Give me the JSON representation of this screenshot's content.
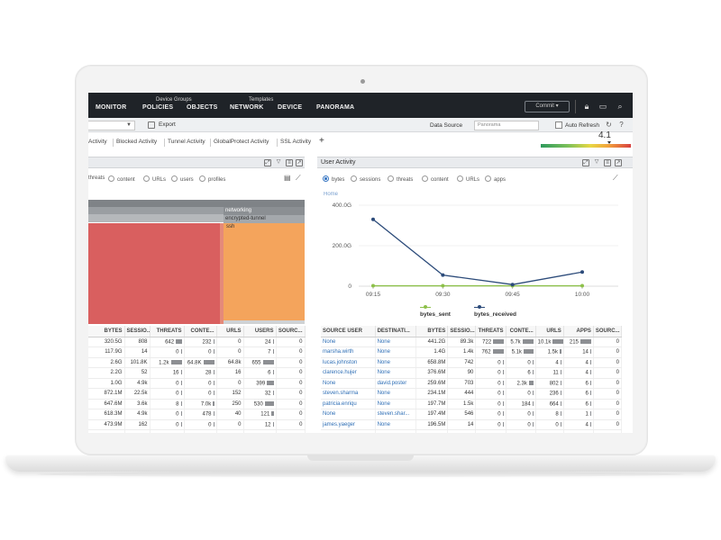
{
  "nav": {
    "tabs": [
      "MONITOR",
      "POLICIES",
      "OBJECTS",
      "NETWORK",
      "DEVICE",
      "PANORAMA"
    ],
    "device_groups_label": "Device Groups",
    "templates_label": "Templates",
    "commit_label": "Commit"
  },
  "toolbar": {
    "export_label": "Export",
    "data_source_label": "Data Source",
    "data_source_value": "Panorama",
    "auto_refresh_label": "Auto Refresh"
  },
  "tabs": [
    "Activity",
    "Blocked Activity",
    "Tunnel Activity",
    "GlobalProtect Activity",
    "SSL Activity"
  ],
  "score": {
    "value": "4.1",
    "level": 0.76
  },
  "left_panel": {
    "filters": [
      "threats",
      "content",
      "URLs",
      "users",
      "profiles"
    ],
    "treemap_labels": [
      "networking",
      "encrypted-tunnel",
      "ssh"
    ],
    "table": {
      "headers": [
        "BYTES",
        "SESSIO...",
        "THREATS",
        "CONTE...",
        "URLS",
        "USERS",
        "SOURC..."
      ],
      "rows": [
        [
          "320.5G",
          "808",
          "642",
          "232",
          "0",
          "24",
          "0"
        ],
        [
          "117.9G",
          "14",
          "0",
          "0",
          "0",
          "7",
          "0"
        ],
        [
          "2.6G",
          "101.8K",
          "1.2k",
          "64.8K",
          "64.8k",
          "655",
          "0"
        ],
        [
          "2.2G",
          "52",
          "16",
          "28",
          "16",
          "6",
          "0"
        ],
        [
          "1.0G",
          "4.9k",
          "0",
          "0",
          "0",
          "399",
          "0"
        ],
        [
          "872.1M",
          "22.5k",
          "0",
          "0",
          "152",
          "32",
          "0"
        ],
        [
          "647.6M",
          "3.6k",
          "8",
          "7.0k",
          "250",
          "530",
          "0"
        ],
        [
          "618.3M",
          "4.9k",
          "0",
          "478",
          "40",
          "121",
          "0"
        ],
        [
          "473.9M",
          "162",
          "0",
          "0",
          "0",
          "12",
          "0"
        ],
        [
          "",
          "",
          "",
          "",
          "",
          "",
          ""
        ]
      ]
    }
  },
  "user_activity": {
    "title": "User Activity",
    "filters": [
      "bytes",
      "sessions",
      "threats",
      "content",
      "URLs",
      "apps"
    ],
    "home_label": "Home",
    "chart_data": {
      "type": "line",
      "x": [
        "09:15",
        "09:30",
        "09:45",
        "10:00"
      ],
      "ylim": [
        0,
        400
      ],
      "yticks": [
        "400.0G",
        "200.0G",
        "0"
      ],
      "series": [
        {
          "name": "bytes_sent",
          "values": [
            2,
            2,
            2,
            2
          ],
          "color": "#8dc04a"
        },
        {
          "name": "bytes_received",
          "values": [
            330,
            55,
            8,
            70
          ],
          "color": "#2c4b7a"
        }
      ]
    },
    "table": {
      "headers": [
        "SOURCE USER",
        "DESTINATI...",
        "BYTES",
        "SESSIO...",
        "THREATS",
        "CONTE...",
        "URLS",
        "APPS",
        "SOURC..."
      ],
      "rows": [
        [
          "None",
          "None",
          "441.2G",
          "89.3k",
          "722",
          "5.7k",
          "10.1k",
          "215",
          "0"
        ],
        [
          "marsha.wirth",
          "None",
          "1.4G",
          "1.4k",
          "762",
          "5.1k",
          "1.5k",
          "14",
          "0"
        ],
        [
          "lucas.johnston",
          "None",
          "658.8M",
          "742",
          "0",
          "0",
          "4",
          "4",
          "0"
        ],
        [
          "clarence.hujer",
          "None",
          "376.6M",
          "90",
          "0",
          "6",
          "11",
          "4",
          "0"
        ],
        [
          "None",
          "david.poster",
          "259.6M",
          "703",
          "0",
          "2.3k",
          "802",
          "6",
          "0"
        ],
        [
          "steven.sharma",
          "None",
          "234.1M",
          "444",
          "0",
          "0",
          "236",
          "6",
          "0"
        ],
        [
          "patricia.enriqu",
          "None",
          "197.7M",
          "1.5k",
          "0",
          "184",
          "664",
          "6",
          "0"
        ],
        [
          "None",
          "steven.shar...",
          "197.4M",
          "546",
          "0",
          "0",
          "8",
          "1",
          "0"
        ],
        [
          "james.yaeger",
          "None",
          "196.5M",
          "14",
          "0",
          "0",
          "0",
          "4",
          "0"
        ],
        [
          "",
          "",
          "",
          "",
          "",
          "",
          "",
          "",
          ""
        ]
      ]
    }
  }
}
